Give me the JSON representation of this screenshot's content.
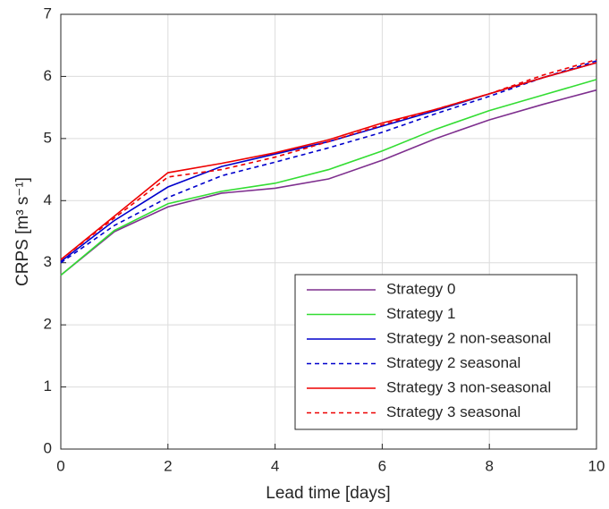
{
  "chart_data": {
    "type": "line",
    "xlabel": "Lead time [days]",
    "ylabel": "CRPS [m³ s⁻¹]",
    "x": [
      0,
      1,
      2,
      3,
      4,
      5,
      6,
      7,
      8,
      9,
      10
    ],
    "xlim": [
      0,
      10
    ],
    "xticks": [
      0,
      2,
      4,
      6,
      8,
      10
    ],
    "ylim": [
      0,
      7
    ],
    "yticks": [
      0,
      1,
      2,
      3,
      4,
      5,
      6,
      7
    ],
    "grid": true,
    "legend": "lower-right",
    "series": [
      {
        "name": "Strategy 0",
        "color": "#7e2f8e",
        "style": "solid",
        "values": [
          2.8,
          3.5,
          3.9,
          4.12,
          4.2,
          4.35,
          4.65,
          5.0,
          5.3,
          5.55,
          5.78
        ]
      },
      {
        "name": "Strategy 1",
        "color": "#33dd33",
        "style": "solid",
        "values": [
          2.8,
          3.52,
          3.95,
          4.15,
          4.28,
          4.5,
          4.8,
          5.15,
          5.45,
          5.7,
          5.95
        ]
      },
      {
        "name": "Strategy 2 non-seasonal",
        "color": "#0000cc",
        "style": "solid",
        "values": [
          3.02,
          3.68,
          4.22,
          4.55,
          4.75,
          4.95,
          5.2,
          5.45,
          5.72,
          5.98,
          6.22
        ]
      },
      {
        "name": "Strategy 2 seasonal",
        "color": "#0000cc",
        "style": "dashed",
        "values": [
          3.0,
          3.6,
          4.05,
          4.4,
          4.62,
          4.85,
          5.1,
          5.4,
          5.68,
          5.98,
          6.25
        ]
      },
      {
        "name": "Strategy 3 non-seasonal",
        "color": "#ee0000",
        "style": "solid",
        "values": [
          3.05,
          3.75,
          4.45,
          4.6,
          4.77,
          4.98,
          5.25,
          5.47,
          5.72,
          5.98,
          6.22
        ]
      },
      {
        "name": "Strategy 3 seasonal",
        "color": "#ee0000",
        "style": "dashed",
        "values": [
          3.05,
          3.72,
          4.38,
          4.5,
          4.7,
          4.95,
          5.22,
          5.47,
          5.72,
          6.02,
          6.27
        ]
      }
    ]
  }
}
